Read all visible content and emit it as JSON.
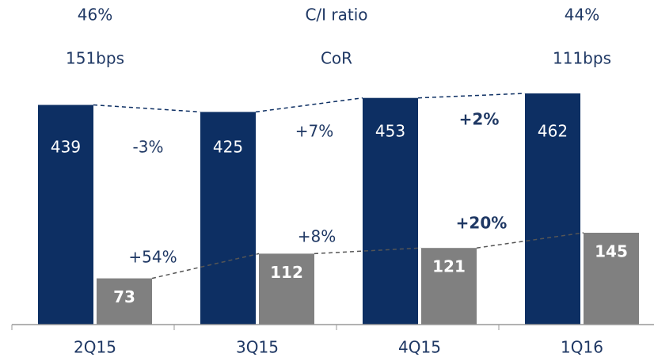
{
  "chart_data": {
    "type": "bar",
    "categories": [
      "2Q15",
      "3Q15",
      "4Q15",
      "1Q16"
    ],
    "series": [
      {
        "color": "#0d2f63",
        "values": [
          439,
          425,
          453,
          462
        ]
      },
      {
        "color": "#808080",
        "values": [
          73,
          112,
          121,
          145
        ]
      }
    ],
    "annotations": [
      {
        "text": "46%"
      },
      {
        "text": "151bps"
      },
      {
        "text": "C/I ratio"
      },
      {
        "text": "CoR"
      },
      {
        "text": "44%"
      },
      {
        "text": "111bps"
      },
      {
        "text": "-3%"
      },
      {
        "text": "+7%"
      },
      {
        "text": "+2%",
        "bold": true
      },
      {
        "text": "+54%"
      },
      {
        "text": "+8%"
      },
      {
        "text": "+20%",
        "bold": true
      }
    ]
  }
}
